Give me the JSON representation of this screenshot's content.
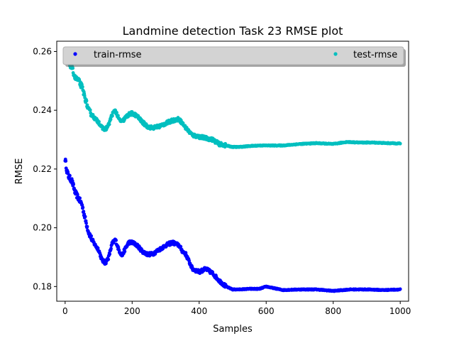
{
  "chart_data": {
    "type": "scatter",
    "title": "Landmine detection Task 23 RMSE plot",
    "xlabel": "Samples",
    "ylabel": "RMSE",
    "xlim": [
      -25,
      1025
    ],
    "ylim": [
      0.175,
      0.2635
    ],
    "xticks": [
      "0",
      "200",
      "400",
      "600",
      "800",
      "1000"
    ],
    "yticks": [
      "0.18",
      "0.20",
      "0.22",
      "0.24",
      "0.26"
    ],
    "grid": false,
    "legend": {
      "placement": "top",
      "frame": "gray shadowed"
    },
    "series": [
      {
        "name": "train-rmse",
        "color": "#0000ff",
        "knots": [
          [
            0,
            0.2235
          ],
          [
            5,
            0.2195
          ],
          [
            10,
            0.2175
          ],
          [
            20,
            0.216
          ],
          [
            30,
            0.212
          ],
          [
            40,
            0.21
          ],
          [
            50,
            0.208
          ],
          [
            60,
            0.203
          ],
          [
            70,
            0.1985
          ],
          [
            80,
            0.196
          ],
          [
            90,
            0.194
          ],
          [
            100,
            0.1925
          ],
          [
            110,
            0.189
          ],
          [
            120,
            0.188
          ],
          [
            130,
            0.19
          ],
          [
            140,
            0.1945
          ],
          [
            150,
            0.196
          ],
          [
            160,
            0.1925
          ],
          [
            170,
            0.1905
          ],
          [
            180,
            0.193
          ],
          [
            190,
            0.195
          ],
          [
            200,
            0.195
          ],
          [
            215,
            0.194
          ],
          [
            230,
            0.192
          ],
          [
            245,
            0.191
          ],
          [
            260,
            0.191
          ],
          [
            280,
            0.1925
          ],
          [
            300,
            0.194
          ],
          [
            320,
            0.195
          ],
          [
            340,
            0.194
          ],
          [
            350,
            0.192
          ],
          [
            360,
            0.191
          ],
          [
            380,
            0.186
          ],
          [
            400,
            0.185
          ],
          [
            420,
            0.186
          ],
          [
            440,
            0.1845
          ],
          [
            460,
            0.182
          ],
          [
            480,
            0.18
          ],
          [
            500,
            0.179
          ],
          [
            520,
            0.179
          ],
          [
            550,
            0.1792
          ],
          [
            580,
            0.1792
          ],
          [
            600,
            0.18
          ],
          [
            620,
            0.1795
          ],
          [
            650,
            0.1788
          ],
          [
            700,
            0.179
          ],
          [
            750,
            0.179
          ],
          [
            800,
            0.1785
          ],
          [
            850,
            0.179
          ],
          [
            900,
            0.179
          ],
          [
            950,
            0.1788
          ],
          [
            1000,
            0.179
          ]
        ]
      },
      {
        "name": "test-rmse",
        "color": "#00bfbf",
        "knots": [
          [
            0,
            0.26
          ],
          [
            5,
            0.2575
          ],
          [
            10,
            0.2565
          ],
          [
            20,
            0.2545
          ],
          [
            30,
            0.251
          ],
          [
            40,
            0.25
          ],
          [
            50,
            0.248
          ],
          [
            60,
            0.244
          ],
          [
            70,
            0.24
          ],
          [
            80,
            0.2385
          ],
          [
            90,
            0.237
          ],
          [
            100,
            0.236
          ],
          [
            110,
            0.234
          ],
          [
            120,
            0.2335
          ],
          [
            130,
            0.235
          ],
          [
            140,
            0.2385
          ],
          [
            150,
            0.24
          ],
          [
            160,
            0.237
          ],
          [
            170,
            0.236
          ],
          [
            180,
            0.2375
          ],
          [
            190,
            0.2385
          ],
          [
            200,
            0.239
          ],
          [
            215,
            0.238
          ],
          [
            230,
            0.236
          ],
          [
            245,
            0.2345
          ],
          [
            260,
            0.234
          ],
          [
            280,
            0.2345
          ],
          [
            300,
            0.2355
          ],
          [
            320,
            0.2365
          ],
          [
            340,
            0.237
          ],
          [
            350,
            0.2355
          ],
          [
            360,
            0.234
          ],
          [
            380,
            0.2315
          ],
          [
            400,
            0.231
          ],
          [
            420,
            0.2305
          ],
          [
            440,
            0.23
          ],
          [
            460,
            0.2285
          ],
          [
            480,
            0.228
          ],
          [
            500,
            0.2275
          ],
          [
            520,
            0.2275
          ],
          [
            550,
            0.2278
          ],
          [
            580,
            0.228
          ],
          [
            600,
            0.228
          ],
          [
            620,
            0.228
          ],
          [
            650,
            0.228
          ],
          [
            700,
            0.2285
          ],
          [
            750,
            0.2288
          ],
          [
            800,
            0.2285
          ],
          [
            840,
            0.2292
          ],
          [
            880,
            0.229
          ],
          [
            920,
            0.229
          ],
          [
            960,
            0.2288
          ],
          [
            1000,
            0.2287
          ]
        ]
      }
    ]
  }
}
